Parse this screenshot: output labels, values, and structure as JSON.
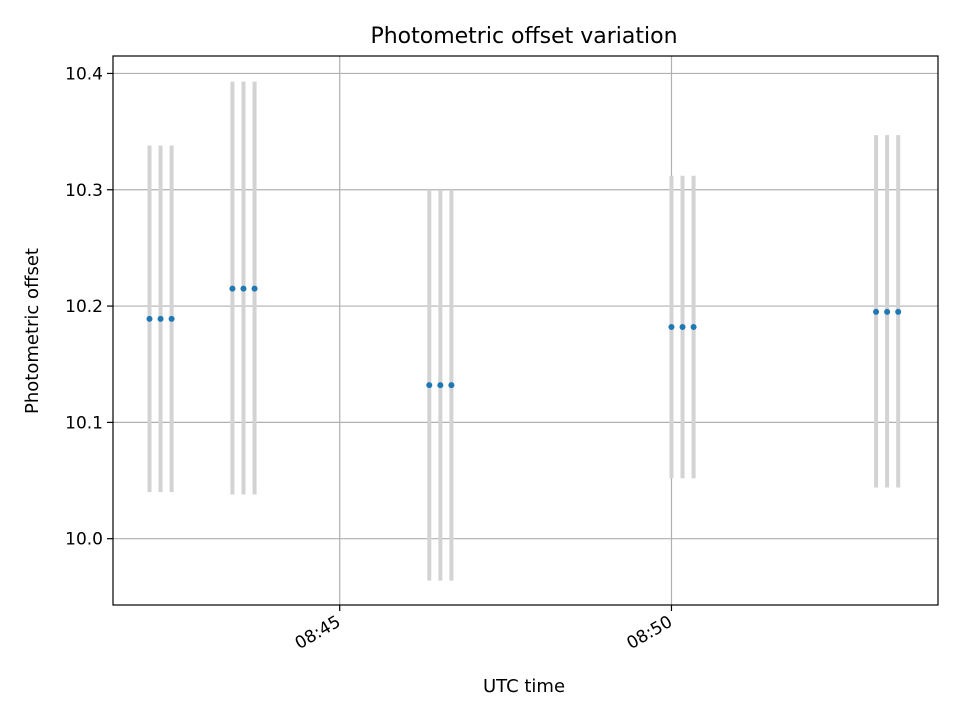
{
  "chart_data": {
    "type": "scatter",
    "title": "Photometric offset variation",
    "xlabel": "UTC time",
    "ylabel": "Photometric offset",
    "xlim": [
      "08:41:35",
      "08:54:01"
    ],
    "ylim": [
      9.943,
      10.415
    ],
    "grid": true,
    "x_ticks": [
      {
        "value": "08:45:00",
        "label": "08:45"
      },
      {
        "value": "08:50:00",
        "label": "08:50"
      }
    ],
    "y_ticks": [
      {
        "value": 10.0,
        "label": "10.0"
      },
      {
        "value": 10.1,
        "label": "10.1"
      },
      {
        "value": 10.2,
        "label": "10.2"
      },
      {
        "value": 10.3,
        "label": "10.3"
      },
      {
        "value": 10.4,
        "label": "10.4"
      }
    ],
    "points": [
      {
        "time": "08:42:08",
        "y": 10.189,
        "low": 10.04,
        "high": 10.338
      },
      {
        "time": "08:42:18",
        "y": 10.189,
        "low": 10.04,
        "high": 10.338
      },
      {
        "time": "08:42:28",
        "y": 10.189,
        "low": 10.04,
        "high": 10.338
      },
      {
        "time": "08:43:23",
        "y": 10.215,
        "low": 10.038,
        "high": 10.393
      },
      {
        "time": "08:43:33",
        "y": 10.215,
        "low": 10.038,
        "high": 10.393
      },
      {
        "time": "08:43:43",
        "y": 10.215,
        "low": 10.038,
        "high": 10.393
      },
      {
        "time": "08:46:21",
        "y": 10.132,
        "low": 9.964,
        "high": 10.3
      },
      {
        "time": "08:46:31",
        "y": 10.132,
        "low": 9.964,
        "high": 10.3
      },
      {
        "time": "08:46:41",
        "y": 10.132,
        "low": 9.964,
        "high": 10.3
      },
      {
        "time": "08:50:00",
        "y": 10.182,
        "low": 10.052,
        "high": 10.312
      },
      {
        "time": "08:50:10",
        "y": 10.182,
        "low": 10.052,
        "high": 10.312
      },
      {
        "time": "08:50:20",
        "y": 10.182,
        "low": 10.052,
        "high": 10.312
      },
      {
        "time": "08:53:05",
        "y": 10.195,
        "low": 10.044,
        "high": 10.347
      },
      {
        "time": "08:53:15",
        "y": 10.195,
        "low": 10.044,
        "high": 10.347
      },
      {
        "time": "08:53:25",
        "y": 10.195,
        "low": 10.044,
        "high": 10.347
      }
    ],
    "colors": {
      "marker": "#1f77b4",
      "errorbar": "#d3d3d3",
      "grid": "#b0b0b0",
      "axes": "#000000"
    }
  }
}
